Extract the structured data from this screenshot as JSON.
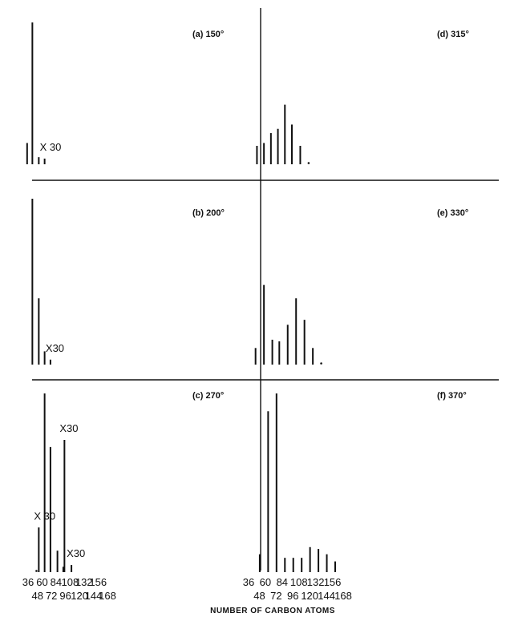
{
  "figure": {
    "xlabel": "NUMBER  OF CARBON ATOMS",
    "ticks_upper": [
      "36",
      "60",
      "84",
      "108",
      "132",
      "156"
    ],
    "ticks_lower": [
      "48",
      "72",
      "96",
      "120",
      "144",
      "168"
    ]
  },
  "chart_data": [
    {
      "type": "bar",
      "panel": "(a) 150°",
      "title": "(a) 150°",
      "xlabel": "NUMBER  OF CARBON ATOMS",
      "ylabel": "",
      "x": [
        44,
        53,
        64,
        74
      ],
      "values": [
        15,
        100,
        5,
        4
      ],
      "ylim": [
        0,
        100
      ],
      "annotations": [
        {
          "text": "X 30",
          "x": 74
        }
      ]
    },
    {
      "type": "bar",
      "panel": "(b) 200°",
      "title": "(b) 200°",
      "xlabel": "NUMBER  OF CARBON ATOMS",
      "ylabel": "",
      "x": [
        53,
        64,
        74,
        84
      ],
      "values": [
        100,
        40,
        8,
        3
      ],
      "ylim": [
        0,
        100
      ],
      "annotations": [
        {
          "text": "X30",
          "x": 84
        }
      ]
    },
    {
      "type": "bar",
      "panel": "(c) 270°",
      "title": "(c) 270°",
      "xlabel": "NUMBER  OF CARBON ATOMS",
      "ylabel": "",
      "x": [
        60,
        64,
        74,
        84,
        96,
        106,
        108,
        120
      ],
      "values": [
        2,
        25,
        100,
        70,
        12,
        3,
        74,
        4
      ],
      "ylim": [
        0,
        100
      ],
      "annotations": [
        {
          "text": "X 30",
          "x": 64
        },
        {
          "text": "X30",
          "x": 108
        },
        {
          "text": "X30",
          "x": 120
        }
      ]
    },
    {
      "type": "bar",
      "panel": "(d) 315°",
      "title": "(d) 315°",
      "xlabel": "NUMBER  OF CARBON ATOMS",
      "ylabel": "",
      "x": [
        56,
        66,
        76,
        86,
        96,
        106,
        118,
        130
      ],
      "values": [
        13,
        15,
        22,
        25,
        42,
        28,
        13,
        2
      ],
      "ylim": [
        0,
        100
      ]
    },
    {
      "type": "bar",
      "panel": "(e) 330°",
      "title": "(e) 330°",
      "xlabel": "NUMBER  OF CARBON ATOMS",
      "ylabel": "",
      "x": [
        54,
        66,
        78,
        88,
        100,
        112,
        124,
        136,
        148
      ],
      "values": [
        10,
        48,
        15,
        14,
        24,
        40,
        27,
        10,
        2
      ],
      "ylim": [
        0,
        100
      ]
    },
    {
      "type": "bar",
      "panel": "(f) 370°",
      "title": "(f) 370°",
      "xlabel": "NUMBER  OF CARBON ATOMS",
      "ylabel": "",
      "x": [
        60,
        72,
        84,
        96,
        108,
        120,
        132,
        144,
        156,
        168
      ],
      "values": [
        10,
        90,
        100,
        8,
        8,
        8,
        14,
        13,
        10,
        6
      ],
      "ylim": [
        0,
        100
      ]
    }
  ]
}
